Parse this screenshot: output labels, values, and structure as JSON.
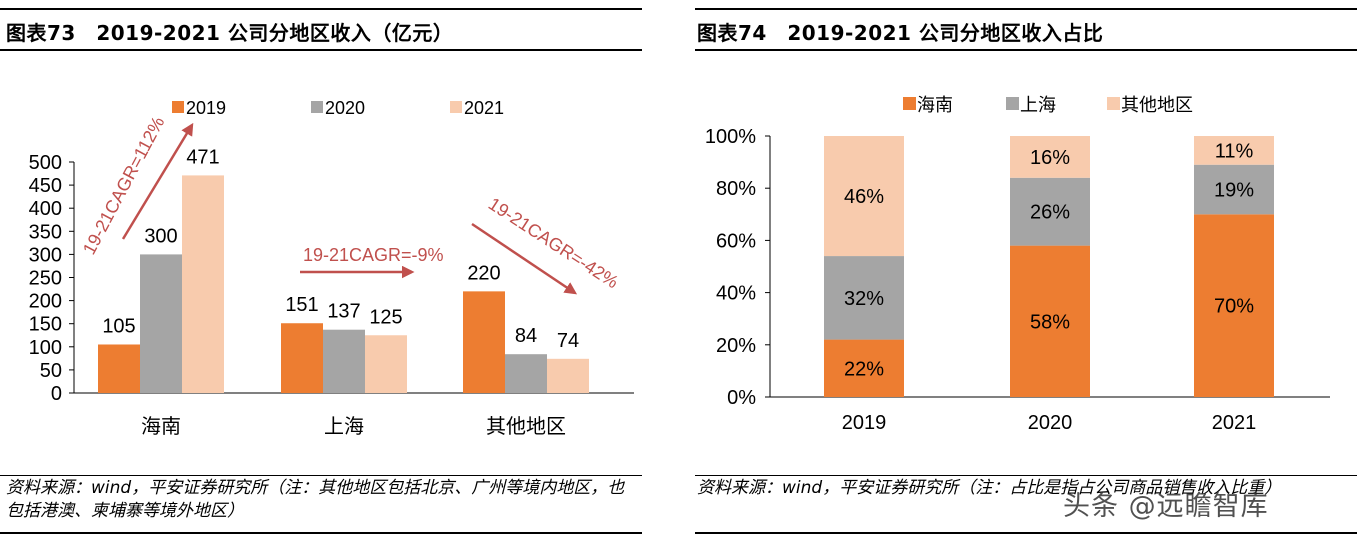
{
  "left": {
    "title": "图表73　2019-2021 公司分地区收入（亿元）",
    "source": "资料来源：wind，平安证券研究所（注：其他地区包括北京、广州等境内地区，也包括港澳、柬埔寨等境外地区）"
  },
  "right": {
    "title": "图表74　2019-2021 公司分地区收入占比",
    "source": "资料来源：wind，平安证券研究所（注：占比是指占公司商品销售收入比重）"
  },
  "watermark": "头条 @远瞻智库",
  "colors": {
    "y2019": "#ED7D31",
    "y2020": "#A5A5A5",
    "y2021": "#F8CBAD",
    "arrow": "#C0504D"
  },
  "chart_data": [
    {
      "type": "bar",
      "categories": [
        "海南",
        "上海",
        "其他地区"
      ],
      "series": [
        {
          "name": "2019",
          "values": [
            105,
            151,
            220
          ]
        },
        {
          "name": "2020",
          "values": [
            300,
            137,
            84
          ]
        },
        {
          "name": "2021",
          "values": [
            471,
            125,
            74
          ]
        }
      ],
      "ylim": [
        0,
        500
      ],
      "yticks": [
        "0",
        "50",
        "100",
        "150",
        "200",
        "250",
        "300",
        "350",
        "400",
        "450",
        "500"
      ],
      "grid": false,
      "legend": "top",
      "annotations": [
        "19-21CAGR=112%",
        "19-21CAGR=-9%",
        "19-21CAGR=-42%"
      ]
    },
    {
      "type": "bar",
      "stacked": true,
      "categories": [
        "2019",
        "2020",
        "2021"
      ],
      "series": [
        {
          "name": "海南",
          "values": [
            22,
            58,
            70
          ]
        },
        {
          "name": "上海",
          "values": [
            32,
            26,
            19
          ]
        },
        {
          "name": "其他地区",
          "values": [
            46,
            16,
            11
          ]
        }
      ],
      "value_labels": [
        [
          "22%",
          "58%",
          "70%"
        ],
        [
          "32%",
          "26%",
          "19%"
        ],
        [
          "46%",
          "16%",
          "11%"
        ]
      ],
      "ylim": [
        0,
        100
      ],
      "yticks": [
        "0%",
        "20%",
        "40%",
        "60%",
        "80%",
        "100%"
      ],
      "grid": false,
      "legend": "top"
    }
  ]
}
